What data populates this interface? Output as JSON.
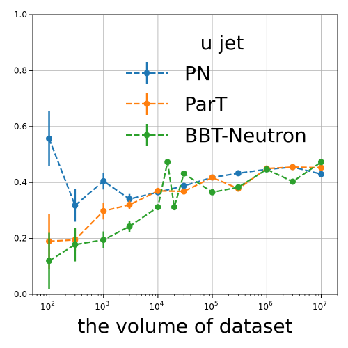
{
  "chart_data": {
    "type": "line",
    "xlabel": "the volume of dataset",
    "ylabel": "",
    "xscale": "log",
    "xlim": [
      50,
      20000000
    ],
    "ylim": [
      0.0,
      1.0
    ],
    "grid": true,
    "legend": {
      "title": "u jet",
      "placement": "upper-right"
    },
    "x_tick_labels": [
      {
        "value": 100,
        "base": "10",
        "exp": "2"
      },
      {
        "value": 1000,
        "base": "10",
        "exp": "3"
      },
      {
        "value": 10000,
        "base": "10",
        "exp": "4"
      },
      {
        "value": 100000,
        "base": "10",
        "exp": "5"
      },
      {
        "value": 1000000,
        "base": "10",
        "exp": "6"
      },
      {
        "value": 10000000,
        "base": "10",
        "exp": "7"
      }
    ],
    "y_tick_labels": [
      "0.0",
      "0.2",
      "0.4",
      "0.6",
      "0.8",
      "1.0"
    ],
    "y_tick_values": [
      0.0,
      0.2,
      0.4,
      0.6,
      0.8,
      1.0
    ],
    "series": [
      {
        "name": "PN",
        "color": "#1f77b4",
        "points": [
          {
            "x": 100,
            "y": 0.557,
            "err": 0.098
          },
          {
            "x": 300,
            "y": 0.318,
            "err": 0.058
          },
          {
            "x": 1000,
            "y": 0.405,
            "err": 0.03
          },
          {
            "x": 3000,
            "y": 0.341,
            "err": 0.018
          },
          {
            "x": 10000,
            "y": 0.365,
            "err": 0.01
          },
          {
            "x": 30000,
            "y": 0.388,
            "err": 0.006
          },
          {
            "x": 100000,
            "y": 0.418,
            "err": 0.004
          },
          {
            "x": 300000,
            "y": 0.433,
            "err": 0.003
          },
          {
            "x": 1000000,
            "y": 0.447,
            "err": 0.002
          },
          {
            "x": 3000000,
            "y": 0.455,
            "err": 0.002
          },
          {
            "x": 10000000,
            "y": 0.43,
            "err": 0.002
          }
        ]
      },
      {
        "name": "ParT",
        "color": "#ff7f0e",
        "points": [
          {
            "x": 100,
            "y": 0.19,
            "err": 0.098
          },
          {
            "x": 300,
            "y": 0.195,
            "err": 0.04
          },
          {
            "x": 1000,
            "y": 0.298,
            "err": 0.03
          },
          {
            "x": 3000,
            "y": 0.32,
            "err": 0.015
          },
          {
            "x": 10000,
            "y": 0.37,
            "err": 0.01
          },
          {
            "x": 30000,
            "y": 0.368,
            "err": 0.006
          },
          {
            "x": 100000,
            "y": 0.418,
            "err": 0.004
          },
          {
            "x": 300000,
            "y": 0.378,
            "err": 0.003
          },
          {
            "x": 1000000,
            "y": 0.45,
            "err": 0.002
          },
          {
            "x": 3000000,
            "y": 0.455,
            "err": 0.002
          },
          {
            "x": 10000000,
            "y": 0.453,
            "err": 0.002
          }
        ]
      },
      {
        "name": "BBT-Neutron",
        "color": "#2ca02c",
        "points": [
          {
            "x": 100,
            "y": 0.12,
            "err": 0.1
          },
          {
            "x": 300,
            "y": 0.178,
            "err": 0.06
          },
          {
            "x": 1000,
            "y": 0.195,
            "err": 0.03
          },
          {
            "x": 3000,
            "y": 0.243,
            "err": 0.02
          },
          {
            "x": 10000,
            "y": 0.312,
            "err": 0.01
          },
          {
            "x": 15000,
            "y": 0.473,
            "err": 0.008
          },
          {
            "x": 20000,
            "y": 0.312,
            "err": 0.007
          },
          {
            "x": 30000,
            "y": 0.432,
            "err": 0.006
          },
          {
            "x": 100000,
            "y": 0.365,
            "err": 0.004
          },
          {
            "x": 300000,
            "y": 0.383,
            "err": 0.003
          },
          {
            "x": 1000000,
            "y": 0.447,
            "err": 0.002
          },
          {
            "x": 3000000,
            "y": 0.403,
            "err": 0.002
          },
          {
            "x": 10000000,
            "y": 0.473,
            "err": 0.002
          }
        ]
      }
    ]
  }
}
